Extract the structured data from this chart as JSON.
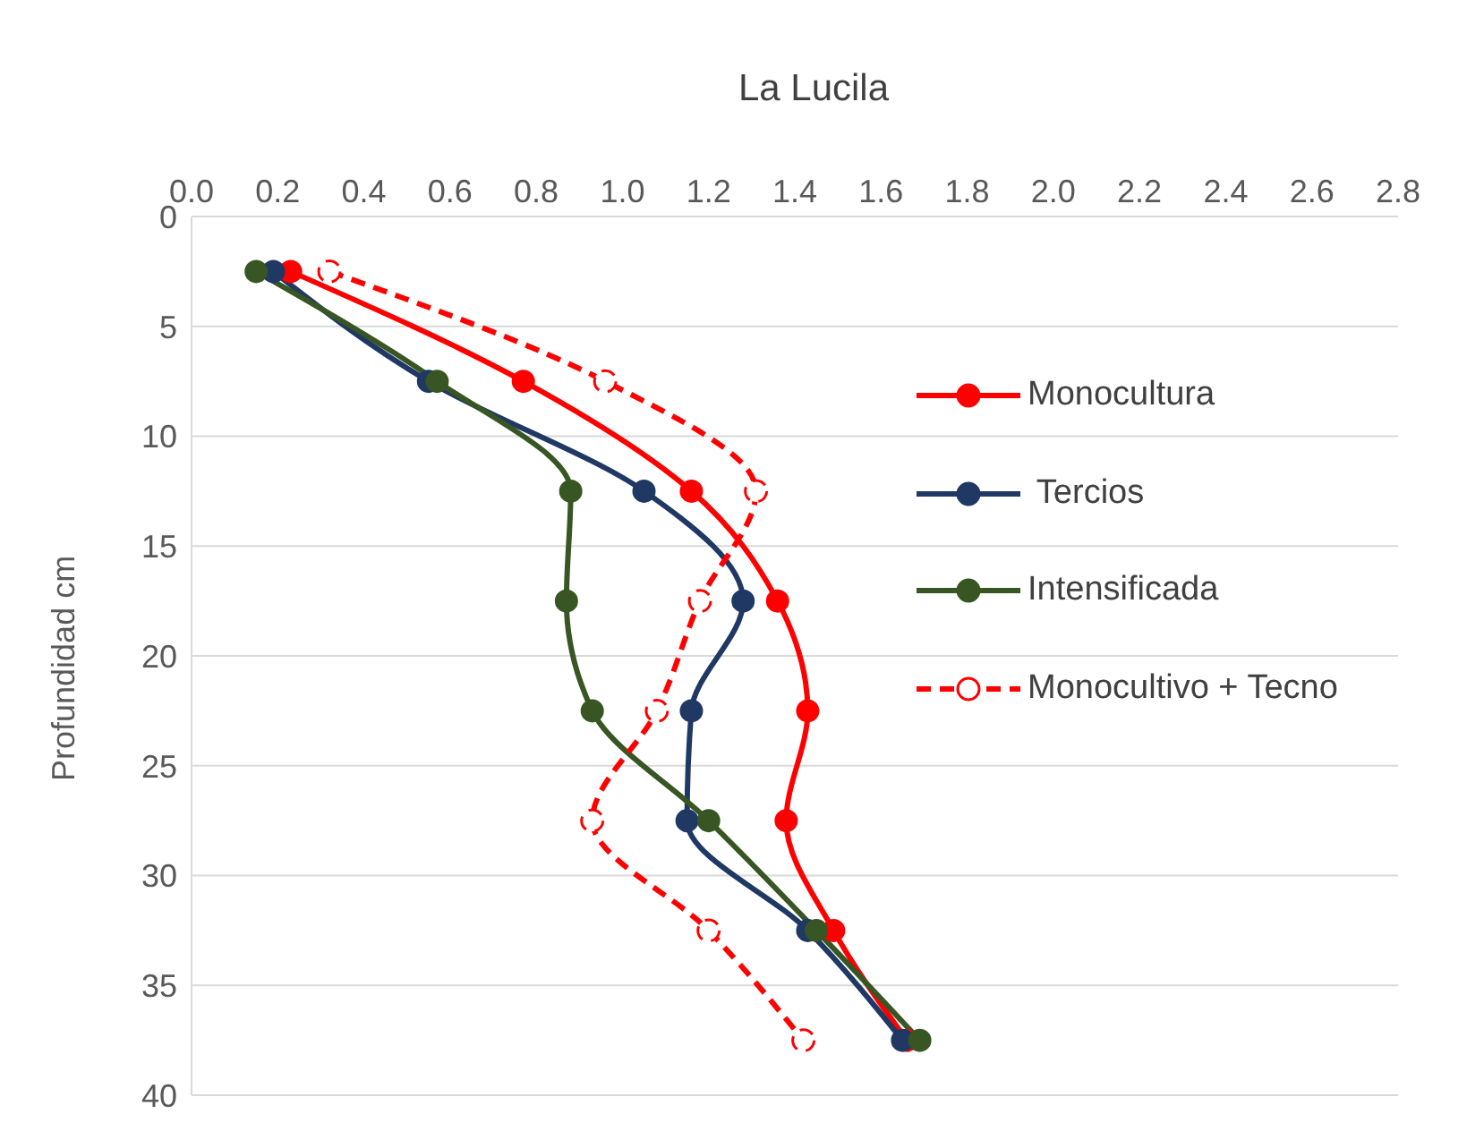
{
  "chart_data": {
    "type": "line",
    "title": "La Lucila",
    "ylabel": "Profundidad cm",
    "orientation": "horizontal",
    "x": [
      2.5,
      7.5,
      12.5,
      17.5,
      22.5,
      27.5,
      32.5,
      37.5
    ],
    "series": [
      {
        "name": "Monocultura",
        "color": "#ff0000",
        "values": [
          0.23,
          0.77,
          1.16,
          1.36,
          1.43,
          1.38,
          1.49,
          1.66
        ]
      },
      {
        "name": " Tercios",
        "color": "#1f3864",
        "values": [
          0.19,
          0.55,
          1.05,
          1.28,
          1.16,
          1.15,
          1.43,
          1.65
        ]
      },
      {
        "name": "Intensificada",
        "color": "#375623",
        "values": [
          0.15,
          0.57,
          0.88,
          0.87,
          0.93,
          1.2,
          1.45,
          1.69
        ]
      },
      {
        "name": "Monocultivo + Tecno",
        "color": "#ff0000",
        "values": [
          0.32,
          0.96,
          1.31,
          1.18,
          1.08,
          0.93,
          1.2,
          1.42
        ],
        "line_style": "dashed",
        "marker": "open circle"
      }
    ],
    "xlim": [
      0,
      2.8
    ],
    "xticks": [
      "0.0",
      0.2,
      0.4,
      0.6,
      0.8,
      "1.0",
      1.2,
      1.4,
      1.6,
      1.8,
      "2.0",
      2.2,
      2.4,
      2.6,
      2.8
    ],
    "ylim": [
      40,
      0
    ],
    "yticks": [
      0,
      5,
      10,
      15,
      20,
      25,
      30,
      35,
      40
    ],
    "grid": "y",
    "legend": "right",
    "marker": "circle",
    "line_style": "solid"
  }
}
